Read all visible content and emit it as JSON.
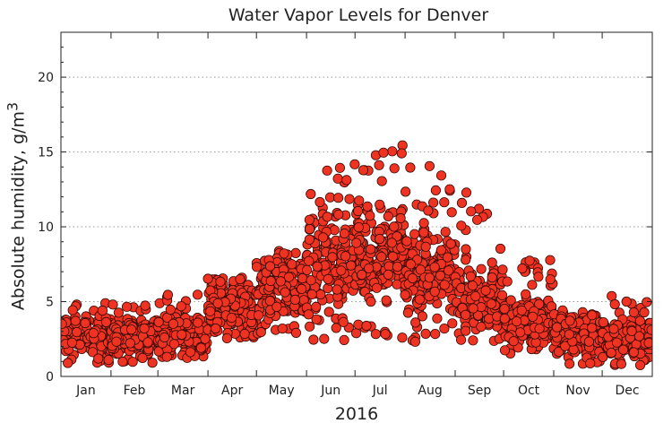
{
  "chart_data": {
    "type": "scatter",
    "title": "Water Vapor Levels for Denver",
    "xlabel": "2016",
    "ylabel_main": "Absolute humidity, g/m",
    "ylabel_sup": "3",
    "ylim": [
      0,
      23
    ],
    "xlim": [
      0,
      366
    ],
    "yticks": [
      0,
      5,
      10,
      15,
      20
    ],
    "grid": "horizontal dotted",
    "marker_color": "#ee3322",
    "marker_edge": "#3a0a05",
    "months": [
      {
        "label": "Jan",
        "start": 0,
        "days": 31
      },
      {
        "label": "Feb",
        "start": 31,
        "days": 29
      },
      {
        "label": "Mar",
        "start": 60,
        "days": 31
      },
      {
        "label": "Apr",
        "start": 91,
        "days": 30
      },
      {
        "label": "May",
        "start": 121,
        "days": 31
      },
      {
        "label": "Jun",
        "start": 152,
        "days": 30
      },
      {
        "label": "Jul",
        "start": 182,
        "days": 31
      },
      {
        "label": "Aug",
        "start": 213,
        "days": 31
      },
      {
        "label": "Sep",
        "start": 244,
        "days": 30
      },
      {
        "label": "Oct",
        "start": 274,
        "days": 31
      },
      {
        "label": "Nov",
        "start": 305,
        "days": 30
      },
      {
        "label": "Dec",
        "start": 335,
        "days": 31
      }
    ],
    "monthly_typical": [
      2.8,
      2.7,
      3.0,
      4.5,
      6.0,
      7.8,
      8.2,
      7.3,
      5.2,
      3.8,
      3.0,
      2.6
    ],
    "monthly_range": [
      [
        0.9,
        4.9
      ],
      [
        0.9,
        5.0
      ],
      [
        1.2,
        5.8
      ],
      [
        2.3,
        7.2
      ],
      [
        2.8,
        8.8
      ],
      [
        2.2,
        14.3
      ],
      [
        2.5,
        15.6
      ],
      [
        2.3,
        14.1
      ],
      [
        2.3,
        12.5
      ],
      [
        1.5,
        7.8
      ],
      [
        0.8,
        6.0
      ],
      [
        0.7,
        5.4
      ]
    ]
  }
}
